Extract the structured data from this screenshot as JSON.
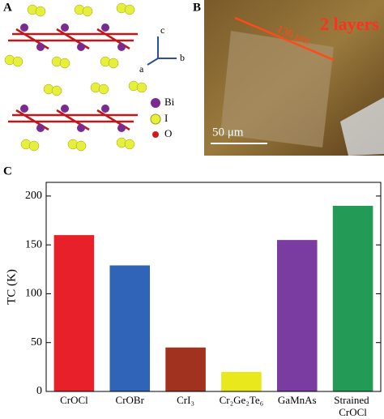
{
  "panels": {
    "a": {
      "label": "A",
      "axis_labels": [
        "c",
        "a",
        "b"
      ],
      "legend": [
        "Bi",
        "I",
        "O"
      ]
    },
    "b": {
      "label": "B",
      "length": "136 μm",
      "note": "2 layers",
      "scale_bar": "50 μm"
    }
  },
  "chart_data": {
    "type": "bar",
    "panel_label": "C",
    "y_label": "TC (K)",
    "categories": [
      "CrOCl",
      "CrOBr",
      "CrI₃",
      "Cr₂Ge₂Te₆",
      "GaMnAs",
      "Strained CrOCl"
    ],
    "values": [
      160,
      129,
      45,
      20,
      155,
      190
    ],
    "colors": [
      "#e8202a",
      "#2f64b8",
      "#a0321f",
      "#e8e81c",
      "#7a3ca0",
      "#239a55"
    ],
    "ylim": [
      0,
      214
    ],
    "yticks": [
      0,
      50,
      100,
      150,
      200
    ],
    "grid": false
  }
}
